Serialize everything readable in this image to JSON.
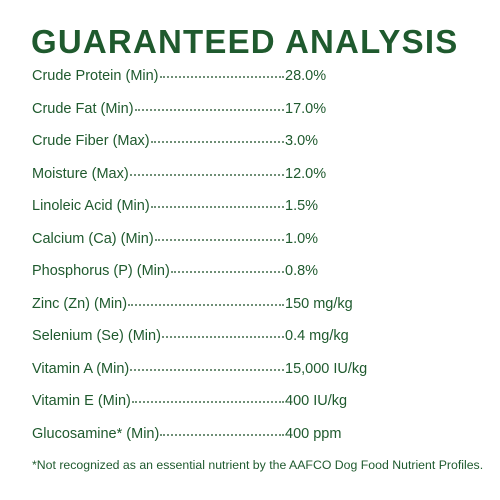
{
  "header": {
    "title": "GUARANTEED ANALYSIS"
  },
  "table": {
    "rows": [
      [
        "Crude Protein (Min)",
        "28.0%"
      ],
      [
        "Crude Fat (Min)",
        "17.0%"
      ],
      [
        "Crude Fiber (Max)",
        "3.0%"
      ],
      [
        "Moisture (Max)",
        "12.0%"
      ],
      [
        "Linoleic Acid (Min)",
        "1.5%"
      ],
      [
        "Calcium (Ca) (Min)",
        "1.0%"
      ],
      [
        "Phosphorus (P) (Min)",
        "0.8%"
      ],
      [
        "Zinc (Zn) (Min)",
        "150 mg/kg"
      ],
      [
        "Selenium (Se) (Min)",
        "0.4 mg/kg"
      ],
      [
        "Vitamin A (Min)",
        "15,000 IU/kg"
      ],
      [
        "Vitamin E (Min)",
        "400 IU/kg"
      ],
      [
        "Glucosamine* (Min)",
        "400 ppm"
      ]
    ]
  },
  "footnote": "*Not recognized as an essential nutrient by the AAFCO Dog Food Nutrient Profiles."
}
